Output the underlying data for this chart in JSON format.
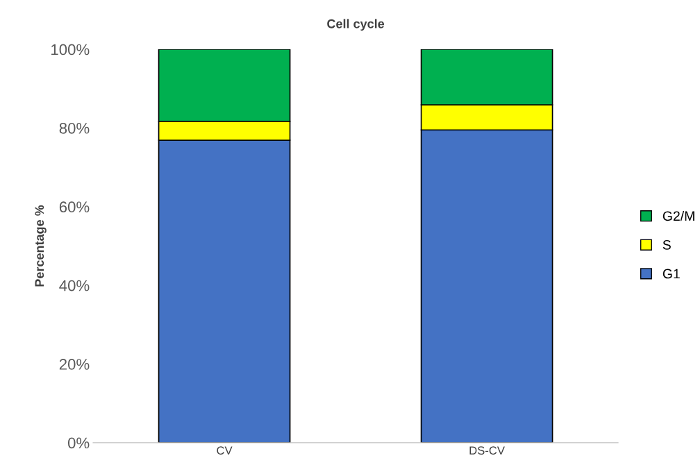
{
  "chart_data": {
    "type": "bar",
    "title": "Cell cycle",
    "ylabel": "Percentage %",
    "stacked": true,
    "categories": [
      "CV",
      "DS-CV"
    ],
    "series": [
      {
        "name": "G1",
        "color": "#4472c4",
        "values": [
          76.9,
          79.5
        ]
      },
      {
        "name": "S",
        "color": "#ffff00",
        "values": [
          4.8,
          6.4
        ]
      },
      {
        "name": "G2/M",
        "color": "#00b050",
        "values": [
          18.3,
          14.1
        ]
      }
    ],
    "ylim": [
      0,
      100
    ],
    "yticks": [
      {
        "value": 0,
        "label": "0%"
      },
      {
        "value": 20,
        "label": "20%"
      },
      {
        "value": 40,
        "label": "40%"
      },
      {
        "value": 60,
        "label": "60%"
      },
      {
        "value": 80,
        "label": "80%"
      },
      {
        "value": 100,
        "label": "100%"
      }
    ],
    "grid": false,
    "legend": "right"
  }
}
